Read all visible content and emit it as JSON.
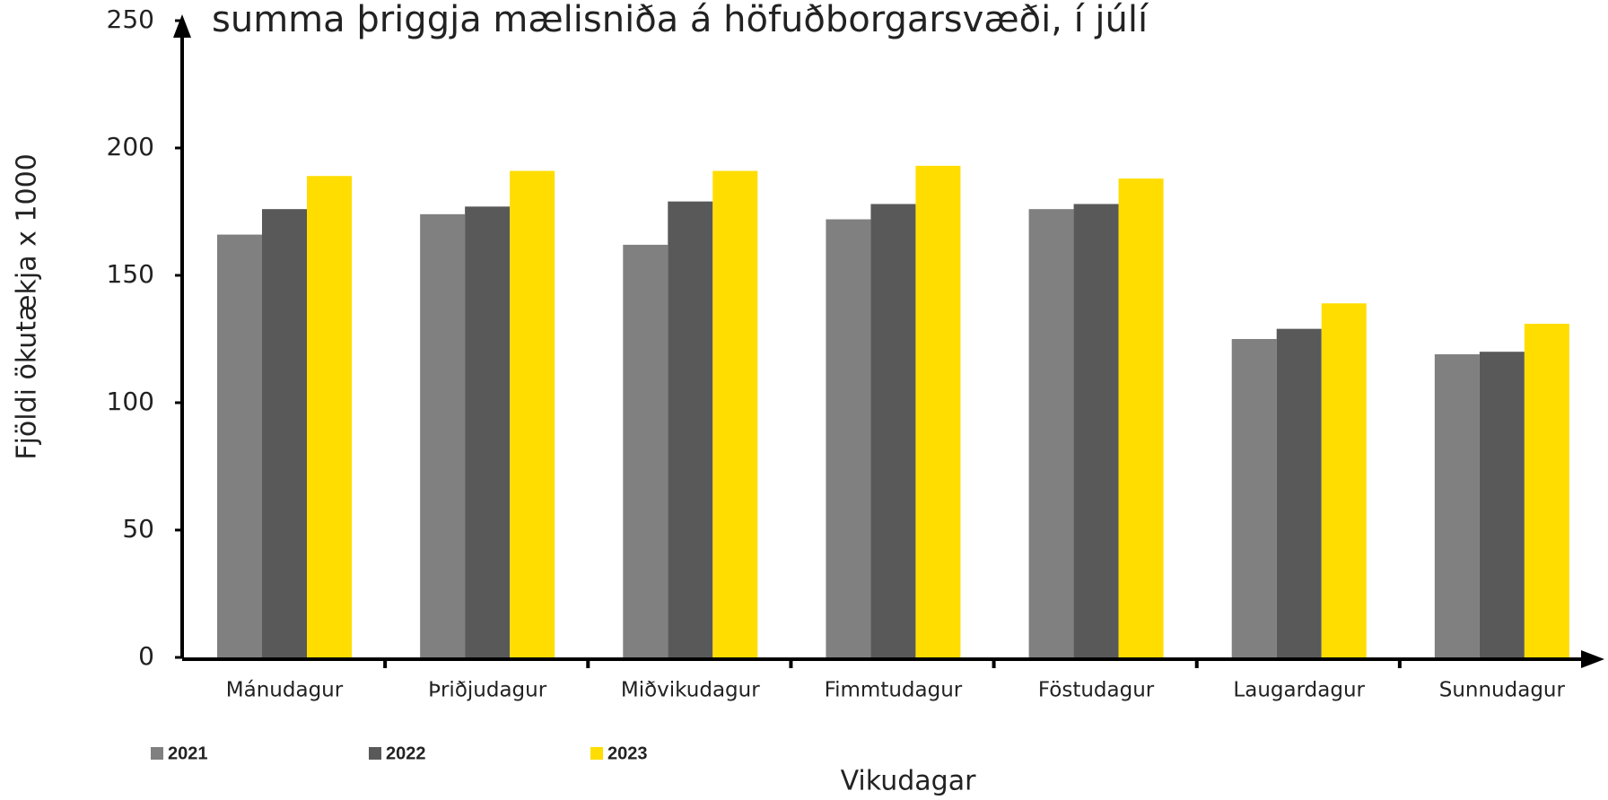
{
  "chart_data": {
    "type": "bar",
    "title": "summa þriggja mælisniða á höfuðborgarsvæði, í júlí",
    "x_label": "Vikudagar",
    "y_label": "Fjöldi ökutækja x 1000",
    "categories": [
      "Mánudagur",
      "Þriðjudagur",
      "Miðvikudagur",
      "Fimmtudagur",
      "Föstudagur",
      "Laugardagur",
      "Sunnudagur"
    ],
    "series": [
      {
        "name": "2021",
        "color": "#808080",
        "values": [
          166,
          174,
          162,
          172,
          176,
          125,
          119
        ]
      },
      {
        "name": "2022",
        "color": "#595959",
        "values": [
          176,
          177,
          179,
          178,
          178,
          129,
          120
        ]
      },
      {
        "name": "2023",
        "color": "#ffdd00",
        "values": [
          189,
          191,
          191,
          193,
          188,
          139,
          131
        ]
      }
    ],
    "ylim": [
      0,
      250
    ],
    "yticks": [
      0,
      50,
      100,
      150,
      200,
      250
    ],
    "grid": false,
    "legend": "bottom-left"
  }
}
